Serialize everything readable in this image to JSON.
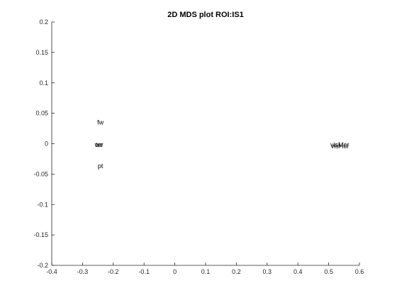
{
  "chart_data": {
    "type": "scatter",
    "title": "2D MDS plot ROI:IS1",
    "xlabel": "",
    "ylabel": "",
    "xlim": [
      -0.4,
      0.6
    ],
    "ylim": [
      -0.2,
      0.2
    ],
    "x_ticks": [
      -0.4,
      -0.3,
      -0.2,
      -0.1,
      0,
      0.1,
      0.2,
      0.3,
      0.4,
      0.5,
      0.6
    ],
    "x_tick_labels": [
      "-0.4",
      "-0.3",
      "-0.2",
      "-0.1",
      "0",
      "0.1",
      "0.2",
      "0.3",
      "0.4",
      "0.5",
      "0.6"
    ],
    "y_ticks": [
      -0.2,
      -0.15,
      -0.1,
      -0.05,
      0,
      0.05,
      0.1,
      0.15,
      0.2
    ],
    "y_tick_labels": [
      "-0.2",
      "-0.15",
      "-0.1",
      "-0.05",
      "0",
      "0.05",
      "0.1",
      "0.15",
      "0.2"
    ],
    "grid": false,
    "legend": "none",
    "marker_color": "#000000",
    "points": [
      {
        "label": "fw",
        "x": -0.242,
        "y": 0.035
      },
      {
        "label": "we",
        "x": -0.247,
        "y": -0.002
      },
      {
        "label": "ter",
        "x": -0.245,
        "y": -0.002
      },
      {
        "label": "pt",
        "x": -0.242,
        "y": -0.037
      },
      {
        "label": "visMer",
        "x": 0.536,
        "y": -0.002
      },
      {
        "label": "visHor",
        "x": 0.537,
        "y": -0.004
      }
    ]
  }
}
